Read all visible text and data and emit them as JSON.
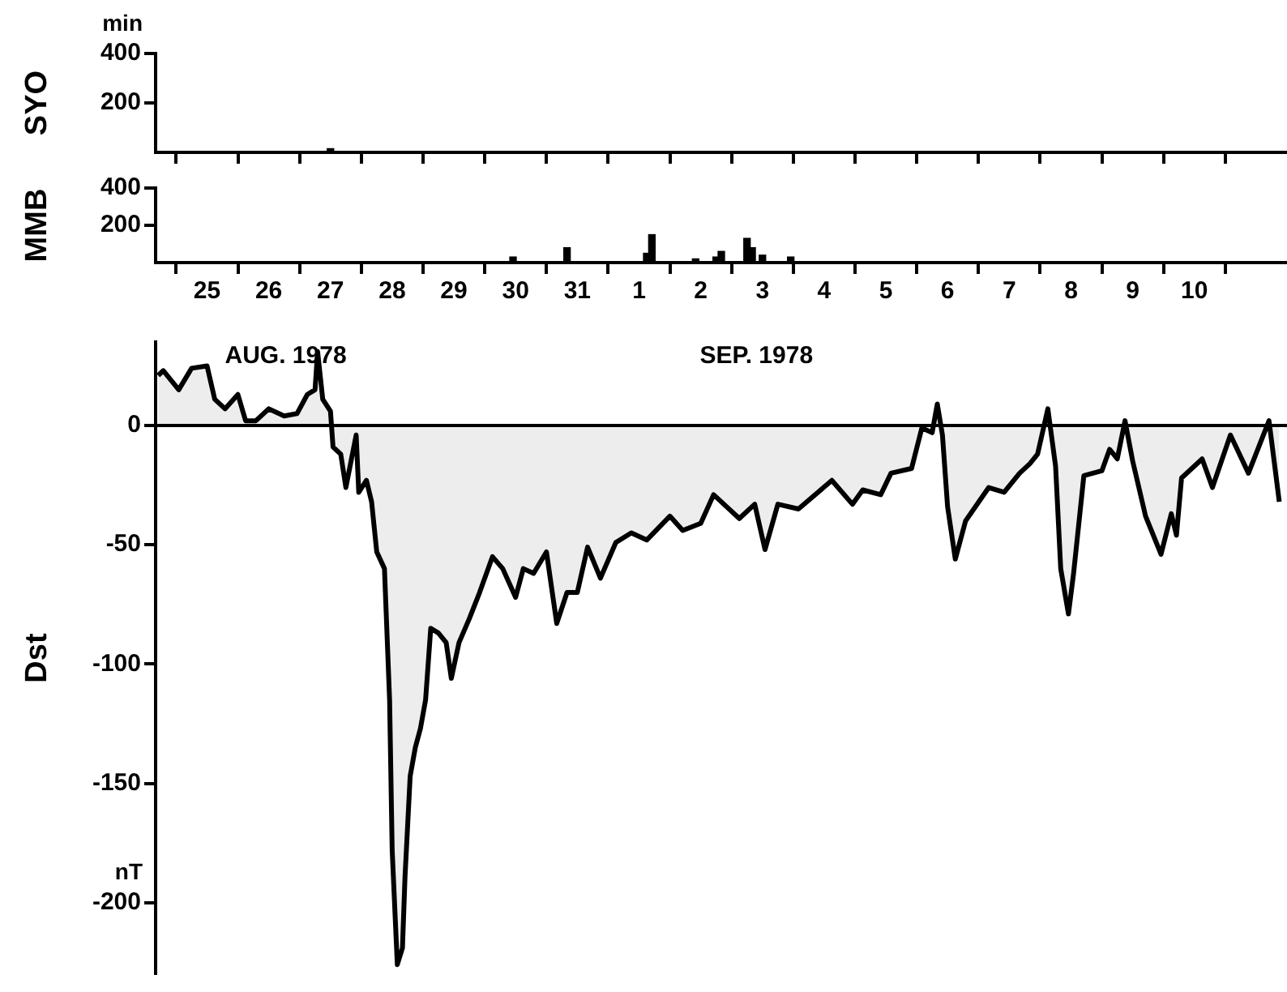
{
  "chart_data": [
    {
      "type": "bar",
      "ylabel": "SYO",
      "annotations": [
        "min"
      ],
      "x": [
        "1978-08-27T12:00"
      ],
      "values": [
        15
      ],
      "color": "#000000",
      "xticks": [
        {
          "value": "1978-08-25",
          "label": null
        },
        {
          "value": "1978-08-26",
          "label": null
        },
        {
          "value": "1978-08-27",
          "label": null
        },
        {
          "value": "1978-08-28",
          "label": null
        },
        {
          "value": "1978-08-29",
          "label": null
        },
        {
          "value": "1978-08-30",
          "label": null
        },
        {
          "value": "1978-08-31",
          "label": null
        },
        {
          "value": "1978-09-01",
          "label": null
        },
        {
          "value": "1978-09-02",
          "label": null
        },
        {
          "value": "1978-09-03",
          "label": null
        },
        {
          "value": "1978-09-04",
          "label": null
        },
        {
          "value": "1978-09-05",
          "label": null
        },
        {
          "value": "1978-09-06",
          "label": null
        },
        {
          "value": "1978-09-07",
          "label": null
        },
        {
          "value": "1978-09-08",
          "label": null
        },
        {
          "value": "1978-09-09",
          "label": null
        },
        {
          "value": "1978-09-10",
          "label": null
        },
        {
          "value": "1978-09-11",
          "label": null
        }
      ],
      "xlim": [
        "1978-08-24T16:00",
        "1978-09-12T00:00"
      ],
      "ylim": [
        0,
        400
      ],
      "yticks": [
        200,
        400
      ],
      "tick_labels": "y"
    },
    {
      "type": "bar",
      "ylabel": "MMB",
      "x": [
        "1978-08-30T11:00",
        "1978-08-31T08:00",
        "1978-09-01T15:00",
        "1978-09-01T17:00",
        "1978-09-02T10:00",
        "1978-09-02T18:00",
        "1978-09-02T20:00",
        "1978-09-03T06:00",
        "1978-09-03T08:00",
        "1978-09-03T12:00",
        "1978-09-03T23:00"
      ],
      "values": [
        30,
        80,
        50,
        150,
        20,
        30,
        60,
        130,
        80,
        40,
        30
      ],
      "color": "#000000",
      "xlim": [
        "1978-08-24T16:00",
        "1978-09-12T00:00"
      ],
      "xticks": [
        {
          "value": "1978-08-25",
          "label": null
        },
        {
          "value": "1978-08-25T12:00",
          "label": "25"
        },
        {
          "value": "1978-08-26",
          "label": null
        },
        {
          "value": "1978-08-26T12:00",
          "label": "26"
        },
        {
          "value": "1978-08-27",
          "label": null
        },
        {
          "value": "1978-08-27T12:00",
          "label": "27"
        },
        {
          "value": "1978-08-28",
          "label": null
        },
        {
          "value": "1978-08-28T12:00",
          "label": "28"
        },
        {
          "value": "1978-08-29",
          "label": null
        },
        {
          "value": "1978-08-29T12:00",
          "label": "29"
        },
        {
          "value": "1978-08-30",
          "label": null
        },
        {
          "value": "1978-08-30T12:00",
          "label": "30"
        },
        {
          "value": "1978-08-31",
          "label": null
        },
        {
          "value": "1978-08-31T12:00",
          "label": "31"
        },
        {
          "value": "1978-09-01",
          "label": null
        },
        {
          "value": "1978-09-01T12:00",
          "label": "1"
        },
        {
          "value": "1978-09-02",
          "label": null
        },
        {
          "value": "1978-09-02T12:00",
          "label": "2"
        },
        {
          "value": "1978-09-03",
          "label": null
        },
        {
          "value": "1978-09-03T12:00",
          "label": "3"
        },
        {
          "value": "1978-09-04",
          "label": null
        },
        {
          "value": "1978-09-04T12:00",
          "label": "4"
        },
        {
          "value": "1978-09-05",
          "label": null
        },
        {
          "value": "1978-09-05T12:00",
          "label": "5"
        },
        {
          "value": "1978-09-06",
          "label": null
        },
        {
          "value": "1978-09-06T12:00",
          "label": "6"
        },
        {
          "value": "1978-09-07",
          "label": null
        },
        {
          "value": "1978-09-07T12:00",
          "label": "7"
        },
        {
          "value": "1978-09-08",
          "label": null
        },
        {
          "value": "1978-09-08T12:00",
          "label": "8"
        },
        {
          "value": "1978-09-09",
          "label": null
        },
        {
          "value": "1978-09-09T12:00",
          "label": "9"
        },
        {
          "value": "1978-09-10",
          "label": null
        },
        {
          "value": "1978-09-10T12:00",
          "label": "10"
        },
        {
          "value": "1978-09-11",
          "label": null
        }
      ],
      "ylim": [
        0,
        400
      ],
      "yticks": [
        200,
        400
      ]
    },
    {
      "type": "area",
      "ylabel": "Dst",
      "marker": "none",
      "line_style": "solid",
      "color": "#000000",
      "annotations": [
        "nT",
        "AUG. 1978",
        "SEP. 1978"
      ],
      "x": [
        "1978-08-24T17:00",
        "1978-08-24T19:00",
        "1978-08-25T01:00",
        "1978-08-25T06:00",
        "1978-08-25T12:00",
        "1978-08-25T15:00",
        "1978-08-25T19:00",
        "1978-08-26T00:00",
        "1978-08-26T03:00",
        "1978-08-26T07:00",
        "1978-08-26T12:00",
        "1978-08-26T18:00",
        "1978-08-26T23:00",
        "1978-08-27T03:00",
        "1978-08-27T06:00",
        "1978-08-27T07:00",
        "1978-08-27T09:00",
        "1978-08-27T12:00",
        "1978-08-27T13:00",
        "1978-08-27T16:00",
        "1978-08-27T18:00",
        "1978-08-27T20:00",
        "1978-08-27T22:00",
        "1978-08-27T23:00",
        "1978-08-28T02:00",
        "1978-08-28T04:00",
        "1978-08-28T06:00",
        "1978-08-28T09:00",
        "1978-08-28T11:00",
        "1978-08-28T12:00",
        "1978-08-28T14:00",
        "1978-08-28T16:00",
        "1978-08-28T17:00",
        "1978-08-28T19:00",
        "1978-08-28T21:00",
        "1978-08-28T23:00",
        "1978-08-29T01:00",
        "1978-08-29T03:00",
        "1978-08-29T06:00",
        "1978-08-29T09:00",
        "1978-08-29T11:00",
        "1978-08-29T14:00",
        "1978-08-29T18:00",
        "1978-08-29T22:00",
        "1978-08-30T03:00",
        "1978-08-30T07:00",
        "1978-08-30T12:00",
        "1978-08-30T15:00",
        "1978-08-30T19:00",
        "1978-08-31T00:00",
        "1978-08-31T04:00",
        "1978-08-31T08:00",
        "1978-08-31T12:00",
        "1978-08-31T16:00",
        "1978-08-31T21:00",
        "1978-09-01T03:00",
        "1978-09-01T09:00",
        "1978-09-01T15:00",
        "1978-09-02T00:00",
        "1978-09-02T05:00",
        "1978-09-02T12:00",
        "1978-09-02T17:00",
        "1978-09-03T03:00",
        "1978-09-03T09:00",
        "1978-09-03T13:00",
        "1978-09-03T18:00",
        "1978-09-04T02:00",
        "1978-09-04T15:00",
        "1978-09-04T23:00",
        "1978-09-05T03:00",
        "1978-09-05T10:00",
        "1978-09-05T14:00",
        "1978-09-05T22:00",
        "1978-09-06T02:00",
        "1978-09-06T06:00",
        "1978-09-06T08:00",
        "1978-09-06T10:00",
        "1978-09-06T12:00",
        "1978-09-06T15:00",
        "1978-09-06T19:00",
        "1978-09-07T04:00",
        "1978-09-07T10:00",
        "1978-09-07T16:00",
        "1978-09-07T20:00",
        "1978-09-07T23:00",
        "1978-09-08T03:00",
        "1978-09-08T06:00",
        "1978-09-08T08:00",
        "1978-09-08T11:00",
        "1978-09-08T13:00",
        "1978-09-08T17:00",
        "1978-09-09T00:00",
        "1978-09-09T03:00",
        "1978-09-09T06:00",
        "1978-09-09T09:00",
        "1978-09-09T12:00",
        "1978-09-09T17:00",
        "1978-09-09T23:00",
        "1978-09-10T03:00",
        "1978-09-10T05:00",
        "1978-09-10T07:00",
        "1978-09-10T15:00",
        "1978-09-10T19:00",
        "1978-09-11T02:00",
        "1978-09-11T09:00",
        "1978-09-11T17:00",
        "1978-09-11T21:00"
      ],
      "values": [
        21,
        23,
        15,
        24,
        25,
        11,
        7,
        13,
        2,
        2,
        7,
        4,
        5,
        13,
        15,
        31,
        11,
        6,
        -9,
        -12,
        -26,
        -15,
        -4,
        -28,
        -23,
        -32,
        -53,
        -60,
        -115,
        -178,
        -226,
        -219,
        -189,
        -147,
        -135,
        -127,
        -115,
        -85,
        -87,
        -91,
        -106,
        -91,
        -81,
        -70,
        -55,
        -60,
        -72,
        -60,
        -62,
        -53,
        -83,
        -70,
        -70,
        -51,
        -64,
        -49,
        -45,
        -48,
        -38,
        -44,
        -41,
        -29,
        -39,
        -33,
        -52,
        -33,
        -35,
        -23,
        -33,
        -27,
        -29,
        -20,
        -18,
        -1,
        -3,
        9,
        -4,
        -34,
        -56,
        -40,
        -26,
        -28,
        -20,
        -16,
        -12,
        7,
        -17,
        -60,
        -79,
        -62,
        -21,
        -19,
        -10,
        -14,
        2,
        -15,
        -38,
        -54,
        -37,
        -46,
        -22,
        -14,
        -26,
        -4,
        -20,
        2,
        -32
      ],
      "xlim": [
        "1978-08-24T16:00",
        "1978-09-12T00:00"
      ],
      "ylim": [
        -230,
        35
      ],
      "yticks": [
        0,
        -50,
        -100,
        -150,
        -200
      ],
      "tick_labels": "y",
      "ref_lines": [
        {
          "axis": "y",
          "value": 0
        }
      ]
    }
  ]
}
